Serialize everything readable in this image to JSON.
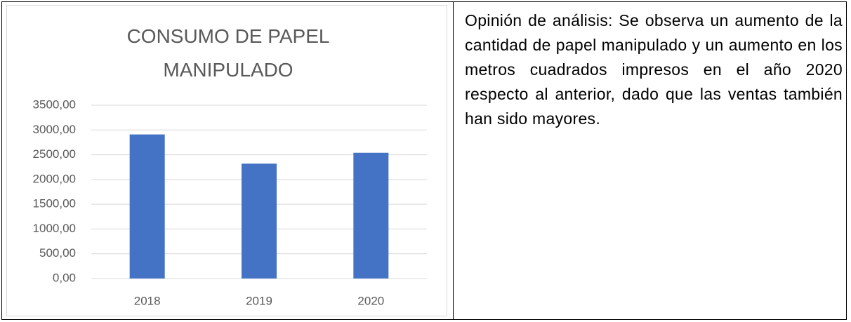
{
  "chart_data": {
    "type": "bar",
    "title": "CONSUMO DE PAPEL MANIPULADO",
    "categories": [
      "2018",
      "2019",
      "2020"
    ],
    "values": [
      2910,
      2320,
      2540
    ],
    "color": "#4472c4",
    "ylim": [
      0,
      3500
    ],
    "yticks": [
      {
        "value": 0,
        "label": "0,00"
      },
      {
        "value": 500,
        "label": "500,00"
      },
      {
        "value": 1000,
        "label": "1000,00"
      },
      {
        "value": 1500,
        "label": "1500,00"
      },
      {
        "value": 2000,
        "label": "2000,00"
      },
      {
        "value": 2500,
        "label": "2500,00"
      },
      {
        "value": 3000,
        "label": "3000,00"
      },
      {
        "value": 3500,
        "label": "3500,00"
      }
    ],
    "grid": true
  },
  "text": "Opinión de análisis: Se observa un aumento de la cantidad de papel manipulado y un aumento en los metros cuadrados impresos en el año 2020 respecto al anterior, dado que las ventas también han sido mayores."
}
